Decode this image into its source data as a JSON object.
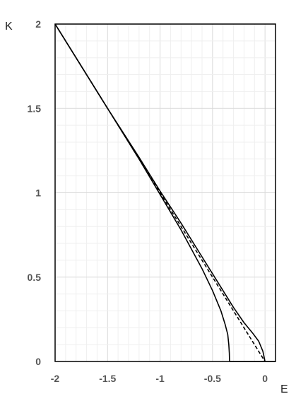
{
  "chart_data": {
    "type": "line",
    "title": "",
    "xlabel": "E",
    "ylabel": "K",
    "xlim": [
      -2,
      0.1
    ],
    "ylim": [
      0,
      2
    ],
    "xticks": [
      -2,
      -1.5,
      -1,
      -0.5,
      0
    ],
    "xtick_labels": [
      "-2",
      "-1.5",
      "-1",
      "-0.5",
      "0"
    ],
    "yticks": [
      0,
      0.5,
      1,
      1.5,
      2
    ],
    "ytick_labels": [
      "0",
      "0.5",
      "1",
      "1.5",
      "2"
    ],
    "grid": true,
    "legend": "none",
    "series": [
      {
        "style": "solid",
        "color": "#000000",
        "points": [
          [
            -2,
            2
          ],
          [
            -1.5,
            1.5
          ],
          [
            -1.2,
            1.2
          ],
          [
            -1,
            0.99
          ],
          [
            -0.8,
            0.78
          ],
          [
            -0.6,
            0.55
          ],
          [
            -0.5,
            0.42
          ],
          [
            -0.42,
            0.3
          ],
          [
            -0.38,
            0.22
          ],
          [
            -0.355,
            0.16
          ],
          [
            -0.345,
            0.1
          ],
          [
            -0.34,
            0.05
          ],
          [
            -0.338,
            0
          ]
        ]
      },
      {
        "style": "solid",
        "color": "#000000",
        "points": [
          [
            -2,
            2
          ],
          [
            -1.5,
            1.5
          ],
          [
            -1.2,
            1.21
          ],
          [
            -1,
            1.01
          ],
          [
            -0.8,
            0.82
          ],
          [
            -0.6,
            0.62
          ],
          [
            -0.5,
            0.52
          ],
          [
            -0.4,
            0.42
          ],
          [
            -0.3,
            0.32
          ],
          [
            -0.2,
            0.23
          ],
          [
            -0.12,
            0.17
          ],
          [
            -0.06,
            0.12
          ],
          [
            -0.02,
            0.06
          ],
          [
            0,
            0
          ]
        ]
      },
      {
        "style": "dashed",
        "color": "#000000",
        "points": [
          [
            -2,
            2
          ],
          [
            -1.5,
            1.5
          ],
          [
            -1,
            1
          ],
          [
            -0.5,
            0.5
          ],
          [
            -0.3,
            0.3
          ],
          [
            -0.15,
            0.15
          ],
          [
            0,
            0
          ]
        ]
      },
      {
        "style": "solid",
        "color": "#000000",
        "points": [
          [
            -0.338,
            0
          ],
          [
            0.1,
            0
          ]
        ]
      }
    ]
  }
}
